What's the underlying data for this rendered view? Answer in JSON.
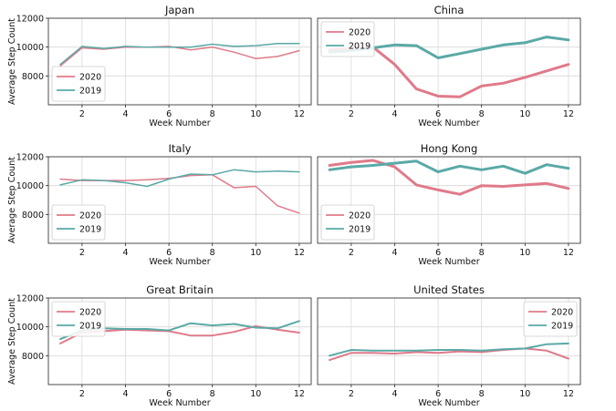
{
  "chart_data": [
    {
      "type": "line",
      "title": "Japan",
      "xlabel": "Week Number",
      "ylabel": "Average Step Count",
      "x": [
        1,
        2,
        3,
        4,
        5,
        6,
        7,
        8,
        9,
        10,
        11,
        12
      ],
      "xticks": [
        2,
        4,
        6,
        8,
        10,
        12
      ],
      "yticks": [
        8000,
        10000,
        12000
      ],
      "xlim": [
        0.45,
        12.55
      ],
      "ylim": [
        6000,
        12000
      ],
      "grid": true,
      "legend": "lower-left",
      "series": [
        {
          "name": "2020",
          "color": "#e07a8a",
          "width": 1.5,
          "values": [
            8700,
            9950,
            9850,
            10000,
            10000,
            10050,
            9800,
            10000,
            9650,
            9200,
            9350,
            9750
          ]
        },
        {
          "name": "2019",
          "color": "#5aa9a6",
          "width": 1.5,
          "values": [
            8800,
            10050,
            9900,
            10050,
            10000,
            10000,
            10000,
            10200,
            10050,
            10100,
            10250,
            10250
          ]
        }
      ]
    },
    {
      "type": "line",
      "title": "China",
      "xlabel": "Week Number",
      "ylabel": "",
      "x": [
        1,
        2,
        3,
        4,
        5,
        6,
        7,
        8,
        9,
        10,
        11,
        12
      ],
      "xticks": [
        2,
        4,
        6,
        8,
        10,
        12
      ],
      "yticks": [],
      "xlim": [
        0.45,
        12.55
      ],
      "ylim": [
        6000,
        12000
      ],
      "grid": true,
      "legend": "upper-left",
      "series": [
        {
          "name": "2020",
          "color": "#e07a8a",
          "width": 3,
          "values": [
            9800,
            9900,
            10000,
            8800,
            7100,
            6600,
            6550,
            7300,
            7500,
            7900,
            8350,
            8800
          ]
        },
        {
          "name": "2019",
          "color": "#5aa9a6",
          "width": 3,
          "values": [
            9650,
            9750,
            9950,
            10150,
            10100,
            9250,
            9550,
            9850,
            10150,
            10300,
            10700,
            10500
          ]
        }
      ]
    },
    {
      "type": "line",
      "title": "Italy",
      "xlabel": "Week Number",
      "ylabel": "Average Step Count",
      "x": [
        1,
        2,
        3,
        4,
        5,
        6,
        7,
        8,
        9,
        10,
        11,
        12
      ],
      "xticks": [
        2,
        4,
        6,
        8,
        10,
        12
      ],
      "yticks": [
        8000,
        10000,
        12000
      ],
      "xlim": [
        0.45,
        12.55
      ],
      "ylim": [
        6000,
        12000
      ],
      "grid": true,
      "legend": "lower-left",
      "series": [
        {
          "name": "2020",
          "color": "#e07a8a",
          "width": 1.5,
          "values": [
            10450,
            10350,
            10350,
            10350,
            10400,
            10500,
            10700,
            10750,
            9850,
            9950,
            8600,
            8100
          ]
        },
        {
          "name": "2019",
          "color": "#5aa9a6",
          "width": 1.5,
          "values": [
            10050,
            10400,
            10350,
            10200,
            9950,
            10450,
            10800,
            10750,
            11100,
            10950,
            11000,
            10950
          ]
        }
      ]
    },
    {
      "type": "line",
      "title": "Hong Kong",
      "xlabel": "Week Number",
      "ylabel": "",
      "x": [
        1,
        2,
        3,
        4,
        5,
        6,
        7,
        8,
        9,
        10,
        11,
        12
      ],
      "xticks": [
        2,
        4,
        6,
        8,
        10,
        12
      ],
      "yticks": [],
      "xlim": [
        0.45,
        12.55
      ],
      "ylim": [
        6000,
        12000
      ],
      "grid": true,
      "legend": "lower-left",
      "series": [
        {
          "name": "2020",
          "color": "#e07a8a",
          "width": 3,
          "values": [
            11400,
            11600,
            11750,
            11300,
            10050,
            9700,
            9400,
            10000,
            9950,
            10050,
            10150,
            9800
          ]
        },
        {
          "name": "2019",
          "color": "#5aa9a6",
          "width": 3,
          "values": [
            11100,
            11300,
            11400,
            11550,
            11700,
            10950,
            11350,
            11100,
            11350,
            10850,
            11450,
            11200
          ]
        }
      ]
    },
    {
      "type": "line",
      "title": "Great Britain",
      "xlabel": "Week Number",
      "ylabel": "Average Step Count",
      "x": [
        1,
        2,
        3,
        4,
        5,
        6,
        7,
        8,
        9,
        10,
        11,
        12
      ],
      "xticks": [
        2,
        4,
        6,
        8,
        10,
        12
      ],
      "yticks": [
        8000,
        10000,
        12000
      ],
      "xlim": [
        0.45,
        12.55
      ],
      "ylim": [
        6000,
        12000
      ],
      "grid": true,
      "legend": "upper-left",
      "series": [
        {
          "name": "2020",
          "color": "#e07a8a",
          "width": 2,
          "values": [
            8850,
            9600,
            9700,
            9800,
            9750,
            9700,
            9400,
            9400,
            9650,
            10050,
            9800,
            9600
          ]
        },
        {
          "name": "2019",
          "color": "#5aa9a6",
          "width": 2,
          "values": [
            9150,
            9750,
            9900,
            9850,
            9850,
            9750,
            10250,
            10100,
            10200,
            9950,
            9900,
            10400
          ]
        }
      ]
    },
    {
      "type": "line",
      "title": "United States",
      "xlabel": "Week Number",
      "ylabel": "",
      "x": [
        1,
        2,
        3,
        4,
        5,
        6,
        7,
        8,
        9,
        10,
        11,
        12
      ],
      "xticks": [
        2,
        4,
        6,
        8,
        10,
        12
      ],
      "yticks": [],
      "xlim": [
        0.45,
        12.55
      ],
      "ylim": [
        6000,
        12000
      ],
      "grid": true,
      "legend": "upper-right",
      "series": [
        {
          "name": "2020",
          "color": "#e07a8a",
          "width": 2,
          "values": [
            7700,
            8200,
            8200,
            8150,
            8250,
            8200,
            8300,
            8250,
            8400,
            8500,
            8350,
            7800
          ]
        },
        {
          "name": "2019",
          "color": "#5aa9a6",
          "width": 2,
          "values": [
            8000,
            8400,
            8350,
            8350,
            8350,
            8400,
            8400,
            8350,
            8450,
            8500,
            8800,
            8850
          ]
        }
      ]
    }
  ]
}
